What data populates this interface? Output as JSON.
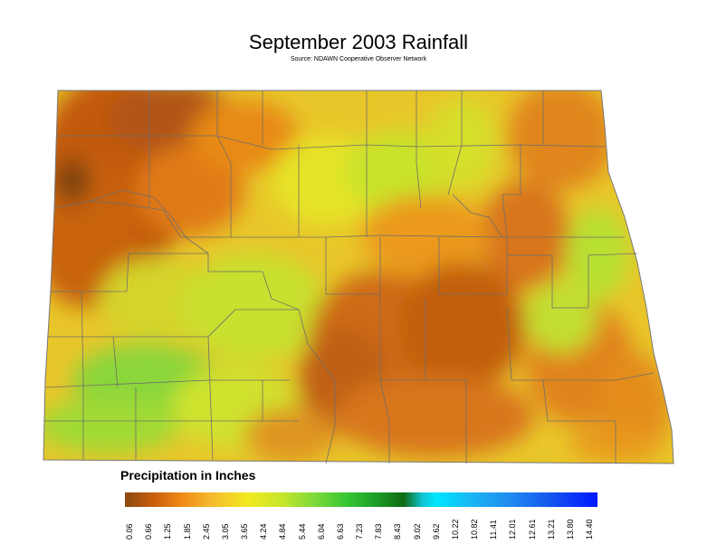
{
  "title": "September 2003 Rainfall",
  "subtitle": "Source: NDAWN Cooperative Observer Network",
  "legend": {
    "title": "Precipitation in Inches",
    "ticks": [
      "0.06",
      "0.66",
      "1.25",
      "1.85",
      "2.45",
      "3.05",
      "3.65",
      "4.24",
      "4.84",
      "5.44",
      "6.04",
      "6.63",
      "7.23",
      "7.83",
      "8.43",
      "9.02",
      "9.62",
      "10.22",
      "10.82",
      "11.41",
      "12.01",
      "12.61",
      "13.21",
      "13.80",
      "14.40"
    ],
    "colors": [
      "#8a4a10",
      "#c85e0a",
      "#f08a18",
      "#f5b82e",
      "#f2ea20",
      "#c8e62a",
      "#7fd93a",
      "#35c632",
      "#1fa62a",
      "#0f6b12",
      "#11c6d6",
      "#00e5ff",
      "#1cb2f2",
      "#1e88f0",
      "#1456ee",
      "#0016ff"
    ]
  }
}
